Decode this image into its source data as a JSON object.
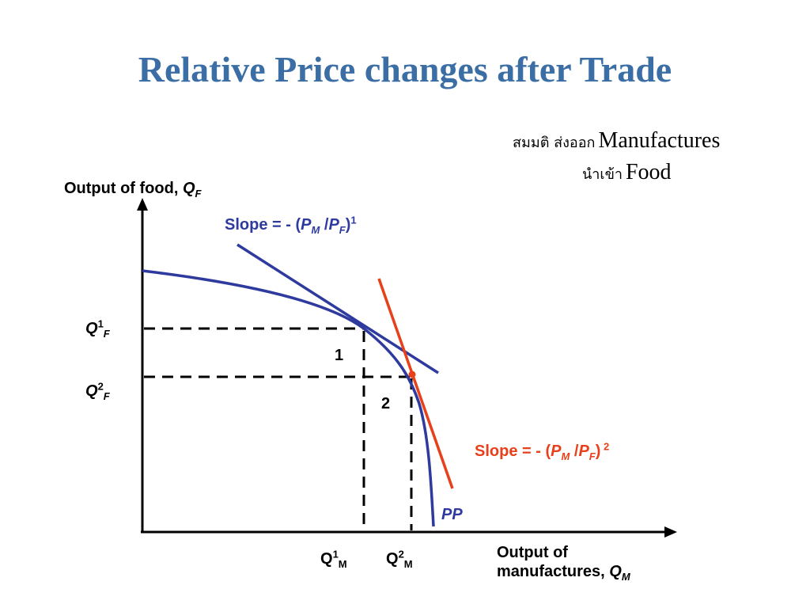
{
  "title": "Relative Price changes after Trade",
  "assumption": {
    "line1_thai": "สมมติ   ส่งออก",
    "line1_en": "Manufactures",
    "line2_thai": "นำเข้า",
    "line2_en": "Food"
  },
  "axes": {
    "y_label": "Output of food,",
    "y_var": "Q",
    "y_sub": "F",
    "x_label_line1": "Output of",
    "x_label_line2": "manufactures,",
    "x_var": "Q",
    "x_sub": "M"
  },
  "ticks": {
    "qf1": {
      "base": "Q",
      "sup": "1",
      "sub": "F"
    },
    "qf2": {
      "base": "Q",
      "sup": "2",
      "sub": "F"
    },
    "qm1": {
      "base": "Q",
      "sup": "1",
      "sub": "M"
    },
    "qm2": {
      "base": "Q",
      "sup": "2",
      "sub": "M"
    }
  },
  "slope1": {
    "prefix": "Slope = - (",
    "pm": "P",
    "pm_sub": "M",
    "sep": " /",
    "pf": "P",
    "pf_sub": "F",
    "close": ")",
    "sup": "1"
  },
  "slope2": {
    "prefix": "Slope = - (",
    "pm": "P",
    "pm_sub": "M",
    "sep": " /",
    "pf": "P",
    "pf_sub": "F",
    "close": ")",
    "sup": " 2"
  },
  "points": {
    "p1": "1",
    "p2": "2"
  },
  "curve_label": "PP",
  "colors": {
    "title": "#3a6ea5",
    "curve": "#2e3a9e",
    "tangent2": "#e8401a"
  }
}
